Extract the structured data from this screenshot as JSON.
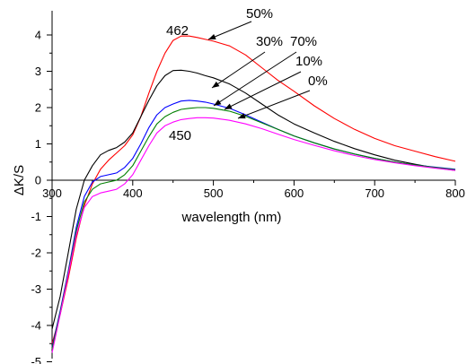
{
  "chart_data": {
    "type": "line",
    "xlabel": "wavelength (nm)",
    "ylabel": "ΔK/S",
    "xlim": [
      300,
      800
    ],
    "ylim": [
      -5,
      4.5
    ],
    "xticks": [
      300,
      400,
      500,
      600,
      700,
      800
    ],
    "yticks": [
      4,
      3,
      2,
      1,
      0,
      -1,
      -2,
      -3,
      -4,
      -5
    ],
    "grid": false,
    "series": [
      {
        "name": "50%",
        "color": "#ff0000",
        "x": [
          300,
          310,
          320,
          330,
          340,
          350,
          360,
          370,
          380,
          390,
          400,
          410,
          420,
          430,
          440,
          450,
          460,
          470,
          480,
          490,
          500,
          520,
          540,
          560,
          580,
          600,
          625,
          650,
          675,
          700,
          725,
          750,
          775,
          800
        ],
        "y": [
          -4.5,
          -3.7,
          -2.7,
          -1.6,
          -0.7,
          -0.1,
          0.3,
          0.55,
          0.75,
          0.95,
          1.25,
          1.75,
          2.4,
          3.0,
          3.5,
          3.85,
          3.97,
          3.97,
          3.93,
          3.88,
          3.83,
          3.7,
          3.45,
          3.1,
          2.75,
          2.45,
          2.05,
          1.7,
          1.4,
          1.15,
          0.95,
          0.8,
          0.65,
          0.52
        ]
      },
      {
        "name": "30%",
        "color": "#000000",
        "x": [
          300,
          310,
          320,
          330,
          340,
          350,
          360,
          370,
          380,
          390,
          400,
          410,
          420,
          430,
          440,
          450,
          460,
          470,
          480,
          490,
          500,
          520,
          540,
          560,
          580,
          600,
          625,
          650,
          675,
          700,
          725,
          750,
          775,
          800
        ],
        "y": [
          -4.1,
          -3.2,
          -2.0,
          -0.8,
          0.0,
          0.4,
          0.7,
          0.82,
          0.9,
          1.05,
          1.3,
          1.75,
          2.2,
          2.6,
          2.88,
          3.02,
          3.03,
          3.0,
          2.95,
          2.88,
          2.82,
          2.65,
          2.4,
          2.1,
          1.8,
          1.55,
          1.3,
          1.07,
          0.87,
          0.7,
          0.55,
          0.44,
          0.34,
          0.27
        ]
      },
      {
        "name": "70%",
        "color": "#0000ff",
        "x": [
          300,
          310,
          320,
          330,
          340,
          350,
          360,
          370,
          380,
          390,
          400,
          410,
          420,
          430,
          440,
          450,
          460,
          470,
          480,
          490,
          500,
          520,
          540,
          560,
          580,
          600,
          625,
          650,
          675,
          700,
          725,
          750,
          775,
          800
        ],
        "y": [
          -4.6,
          -3.6,
          -2.5,
          -1.3,
          -0.45,
          -0.05,
          0.1,
          0.15,
          0.2,
          0.35,
          0.6,
          1.0,
          1.45,
          1.8,
          2.0,
          2.1,
          2.18,
          2.2,
          2.18,
          2.15,
          2.1,
          1.98,
          1.8,
          1.6,
          1.4,
          1.22,
          1.03,
          0.86,
          0.72,
          0.6,
          0.5,
          0.42,
          0.36,
          0.3
        ]
      },
      {
        "name": "10%",
        "color": "#008000",
        "x": [
          300,
          310,
          320,
          330,
          340,
          350,
          360,
          370,
          380,
          390,
          400,
          410,
          420,
          430,
          440,
          450,
          460,
          470,
          480,
          490,
          500,
          520,
          540,
          560,
          580,
          600,
          625,
          650,
          675,
          700,
          725,
          750,
          775,
          800
        ],
        "y": [
          -4.65,
          -3.65,
          -2.55,
          -1.4,
          -0.6,
          -0.25,
          -0.1,
          -0.05,
          0.0,
          0.15,
          0.4,
          0.8,
          1.2,
          1.55,
          1.75,
          1.87,
          1.95,
          1.98,
          2.0,
          2.0,
          1.98,
          1.9,
          1.76,
          1.58,
          1.4,
          1.22,
          1.03,
          0.86,
          0.72,
          0.6,
          0.5,
          0.42,
          0.35,
          0.29
        ]
      },
      {
        "name": "0%",
        "color": "#ff00ff",
        "x": [
          300,
          310,
          320,
          330,
          340,
          350,
          360,
          370,
          380,
          390,
          400,
          410,
          420,
          430,
          440,
          450,
          460,
          470,
          480,
          490,
          500,
          520,
          540,
          560,
          580,
          600,
          625,
          650,
          675,
          700,
          725,
          750,
          775,
          800
        ],
        "y": [
          -4.75,
          -3.7,
          -2.6,
          -1.5,
          -0.75,
          -0.45,
          -0.35,
          -0.3,
          -0.25,
          -0.1,
          0.15,
          0.55,
          0.95,
          1.3,
          1.5,
          1.6,
          1.67,
          1.7,
          1.72,
          1.72,
          1.71,
          1.65,
          1.55,
          1.42,
          1.27,
          1.12,
          0.96,
          0.81,
          0.68,
          0.57,
          0.48,
          0.4,
          0.33,
          0.27
        ]
      }
    ],
    "annotations": [
      {
        "text": "462"
      },
      {
        "text": "50%"
      },
      {
        "text": "30%"
      },
      {
        "text": "70%"
      },
      {
        "text": "10%"
      },
      {
        "text": "0%"
      },
      {
        "text": "450"
      }
    ]
  }
}
